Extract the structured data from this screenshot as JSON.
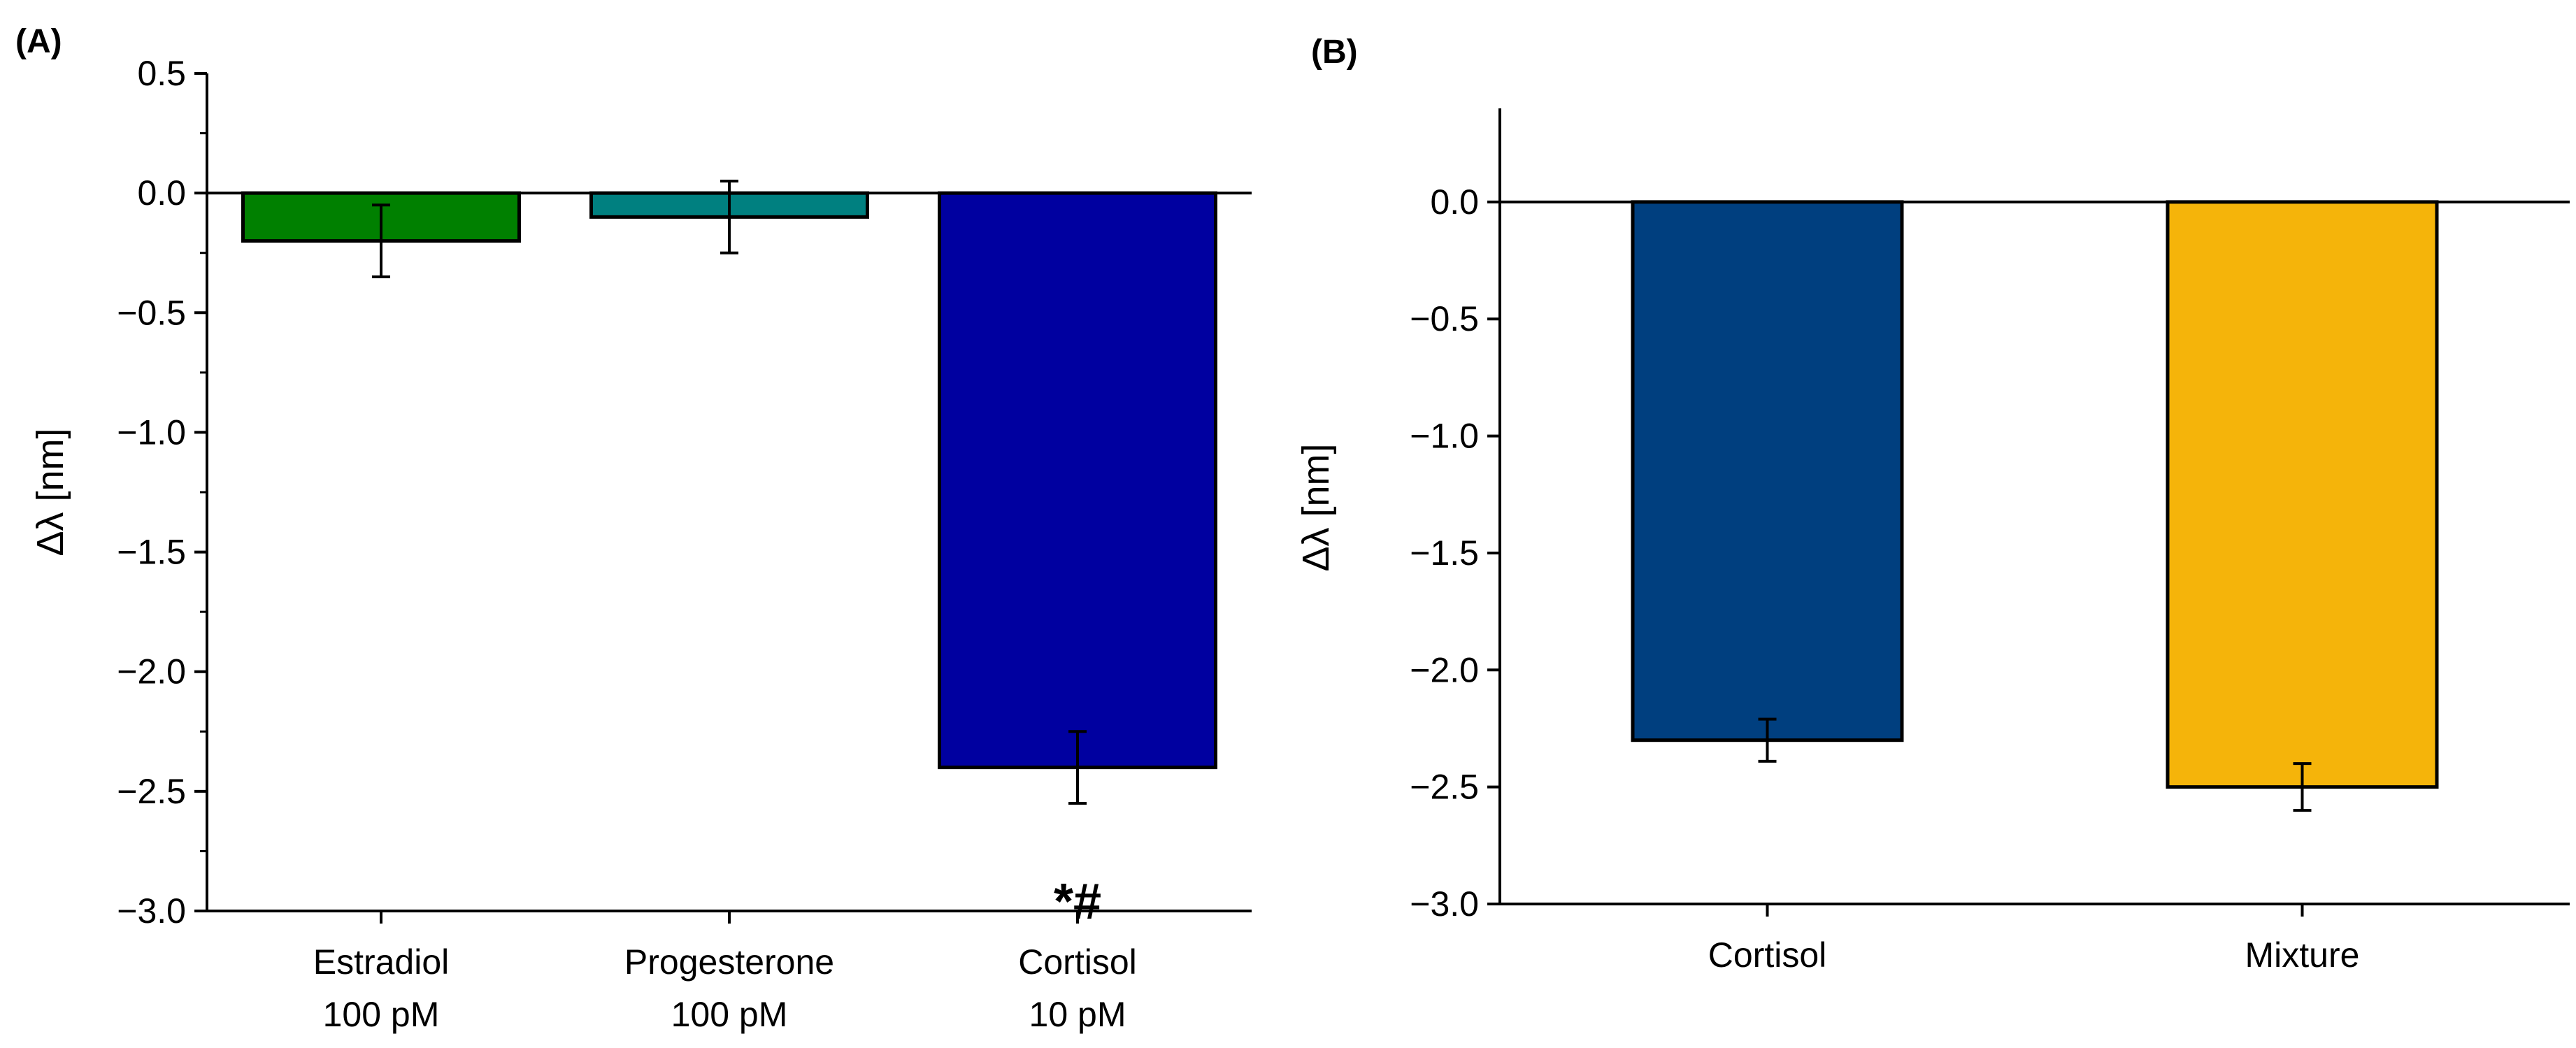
{
  "chart_data": [
    {
      "type": "bar",
      "panel_label": "(A)",
      "categories": [
        {
          "line1": "Estradiol",
          "line2": "100 pM"
        },
        {
          "line1": "Progesterone",
          "line2": "100 pM"
        },
        {
          "line1": "Cortisol",
          "line2": "10 pM"
        }
      ],
      "values": [
        -0.2,
        -0.1,
        -2.4
      ],
      "errors": [
        0.15,
        0.15,
        0.15
      ],
      "colors": [
        "#008000",
        "#008080",
        "#0000A0"
      ],
      "annotations": [
        null,
        null,
        "*#"
      ],
      "ylabel": "Δλ [nm]",
      "ylim": [
        -3.0,
        0.5
      ],
      "yticks": [
        0.5,
        0.0,
        -0.5,
        -1.0,
        -1.5,
        -2.0,
        -2.5,
        -3.0
      ],
      "ytick_labels": [
        "0.5",
        "0.0",
        "−0.5",
        "−1.0",
        "−1.5",
        "−2.0",
        "−2.5",
        "−3.0"
      ]
    },
    {
      "type": "bar",
      "panel_label": "(B)",
      "categories": [
        {
          "line1": "Cortisol",
          "line2": ""
        },
        {
          "line1": "Mixture",
          "line2": ""
        }
      ],
      "values": [
        -2.3,
        -2.5
      ],
      "errors": [
        0.09,
        0.1
      ],
      "colors": [
        "#003F7F",
        "#F5B40A"
      ],
      "annotations": [
        null,
        null
      ],
      "ylabel": "Δλ [nm]",
      "ylim": [
        -3.0,
        0.4
      ],
      "yticks": [
        0.0,
        -0.5,
        -1.0,
        -1.5,
        -2.0,
        -2.5,
        -3.0
      ],
      "ytick_labels": [
        "0.0",
        "−0.5",
        "−1.0",
        "−1.5",
        "−2.0",
        "−2.5",
        "−3.0"
      ]
    }
  ]
}
